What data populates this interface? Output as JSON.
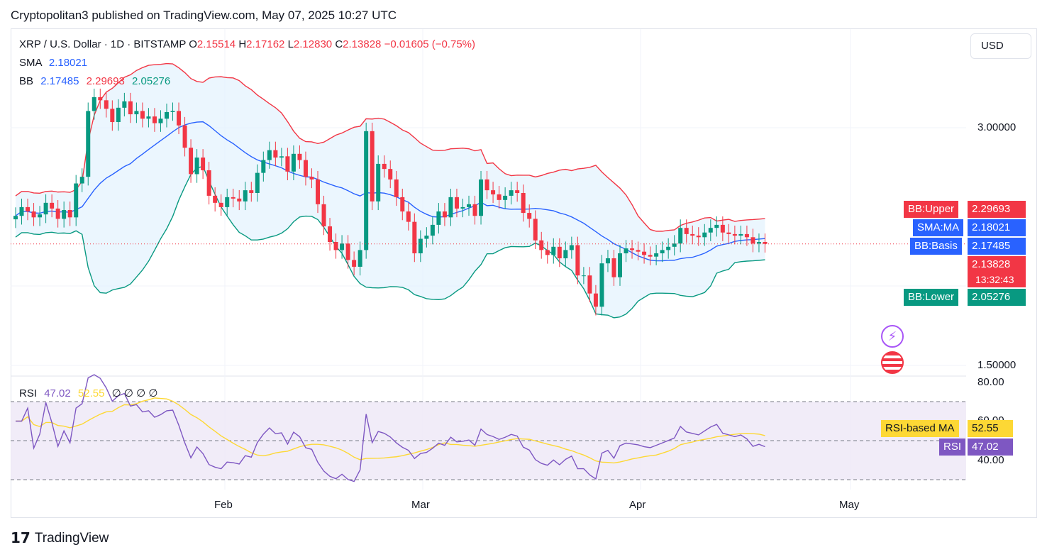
{
  "header": {
    "published": "Cryptopolitan3 published on TradingView.com, May 07, 2025 10:27 UTC"
  },
  "legend": {
    "symbol": "XRP / U.S. Dollar · 1D · BITSTAMP",
    "o_label": "O",
    "o_value": "2.15514",
    "h_label": "H",
    "h_value": "2.17162",
    "l_label": "L",
    "l_value": "2.12830",
    "c_label": "C",
    "c_value": "2.13828",
    "change": "−0.01605 (−0.75%)",
    "sma_label": "SMA",
    "sma_value": "2.18021",
    "bb_label": "BB",
    "bb_basis": "2.17485",
    "bb_upper": "2.29693",
    "bb_lower": "2.05276",
    "rsi_label": "RSI",
    "rsi_value": "47.02",
    "rsi_ma_value": "52.55",
    "rsi_extra": "∅ ∅ ∅ ∅"
  },
  "currency_button": "USD",
  "price_axis": [
    "3.00000",
    "1.50000"
  ],
  "rsi_axis": [
    "80.00",
    "60.00",
    "40.00"
  ],
  "time_axis": [
    "Feb",
    "Mar",
    "Apr",
    "May"
  ],
  "tags": {
    "bb_upper_label": "BB:Upper",
    "bb_upper_value": "2.29693",
    "sma_label": "SMA:MA",
    "sma_value": "2.18021",
    "bb_basis_label": "BB:Basis",
    "bb_basis_value": "2.17485",
    "last_price": "2.13828",
    "countdown": "13:32:43",
    "bb_lower_label": "BB:Lower",
    "bb_lower_value": "2.05276",
    "rsi_ma_label": "RSI-based MA",
    "rsi_ma_value": "52.55",
    "rsi_label": "RSI",
    "rsi_value": "47.02"
  },
  "brand": "TradingView",
  "colors": {
    "up": "#089981",
    "down": "#f23645",
    "bb_upper": "#f23645",
    "bb_lower": "#089981",
    "bb_basis": "#2962ff",
    "sma": "#2962ff",
    "bb_fill": "#e3f2fd",
    "rsi": "#7e57c2",
    "rsi_ma": "#fdd835",
    "rsi_band": "#ede7f6"
  },
  "chart_data": {
    "type": "candlestick",
    "symbol": "XRP / U.S. Dollar",
    "interval": "1D",
    "exchange": "BITSTAMP",
    "y_scale": "log",
    "x_range": [
      "2025-01-05",
      "2025-05-07"
    ],
    "month_ticks": [
      {
        "label": "Feb",
        "date": "2025-02-01"
      },
      {
        "label": "Mar",
        "date": "2025-03-01"
      },
      {
        "label": "Apr",
        "date": "2025-04-01"
      },
      {
        "label": "May",
        "date": "2025-05-01"
      }
    ],
    "close": [
      2.32,
      2.38,
      2.35,
      2.31,
      2.33,
      2.41,
      2.37,
      2.3,
      2.36,
      2.31,
      2.55,
      2.6,
      3.15,
      3.28,
      3.25,
      3.17,
      3.05,
      3.18,
      3.24,
      3.12,
      3.15,
      3.08,
      3.1,
      3.04,
      3.08,
      3.14,
      3.15,
      3.02,
      2.83,
      2.62,
      2.75,
      2.65,
      2.46,
      2.41,
      2.38,
      2.45,
      2.44,
      2.42,
      2.5,
      2.48,
      2.63,
      2.73,
      2.81,
      2.75,
      2.76,
      2.64,
      2.78,
      2.73,
      2.6,
      2.58,
      2.4,
      2.25,
      2.15,
      2.1,
      2.14,
      2.04,
      2.0,
      2.1,
      2.97,
      2.42,
      2.7,
      2.66,
      2.58,
      2.45,
      2.35,
      2.28,
      2.08,
      2.17,
      2.19,
      2.26,
      2.35,
      2.31,
      2.45,
      2.37,
      2.38,
      2.4,
      2.32,
      2.58,
      2.5,
      2.47,
      2.43,
      2.46,
      2.5,
      2.48,
      2.34,
      2.3,
      2.16,
      2.1,
      2.07,
      2.12,
      2.05,
      2.1,
      2.13,
      1.95,
      1.95,
      1.85,
      1.78,
      2.02,
      2.05,
      1.94,
      2.08,
      2.11,
      2.1,
      2.09,
      2.07,
      2.06,
      2.08,
      2.1,
      2.12,
      2.14,
      2.24,
      2.2,
      2.19,
      2.18,
      2.21,
      2.24,
      2.26,
      2.21,
      2.2,
      2.19,
      2.2,
      2.18,
      2.14,
      2.15,
      2.138
    ],
    "bb_upper_last": 2.29693,
    "bb_basis_last": 2.17485,
    "bb_lower_last": 2.05276,
    "sma_last": 2.18021,
    "rsi_last": 47.02,
    "rsi_ma_last": 52.55,
    "rsi_bands": [
      70,
      50,
      30
    ]
  }
}
